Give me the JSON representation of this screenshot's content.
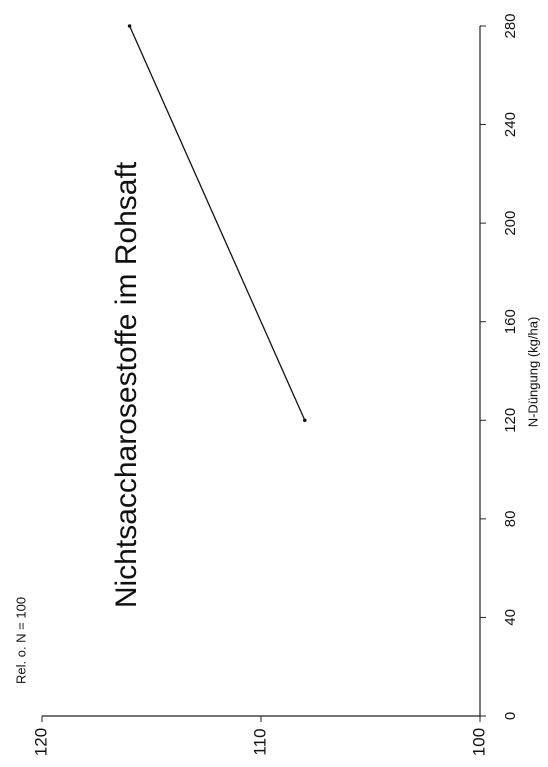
{
  "chart_data": {
    "type": "line",
    "orientation": "rotated-90-ccw",
    "title": "Nichtsaccharosestoffe im Rohsaft",
    "xlabel": "N-Düngung (kg/ha)",
    "ylabel": "Rel. o. N = 100",
    "xlim": [
      0,
      280
    ],
    "ylim": [
      100,
      120
    ],
    "x_ticks": [
      "0",
      "40",
      "80",
      "120",
      "160",
      "200",
      "240",
      "280"
    ],
    "y_ticks": [
      "100",
      "110",
      "120"
    ],
    "grid": false,
    "series": [
      {
        "x": [
          120,
          280
        ],
        "values": [
          108,
          116
        ]
      }
    ]
  }
}
